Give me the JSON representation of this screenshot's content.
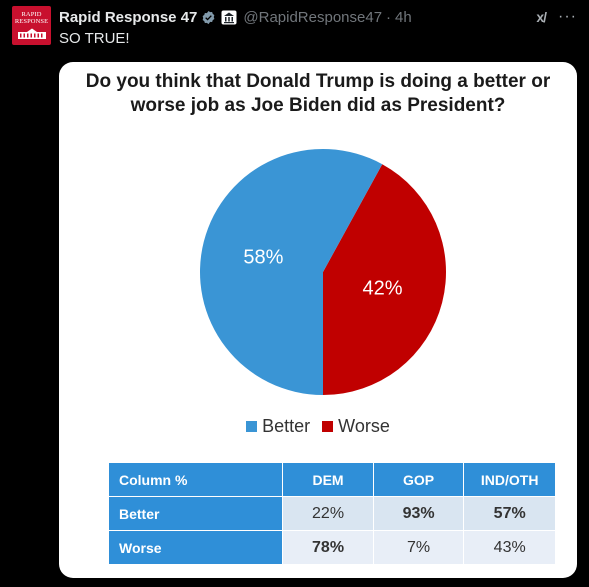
{
  "tweet": {
    "avatar": {
      "line1": "RAPID",
      "line2": "RESPONSE"
    },
    "author_name": "Rapid Response 47",
    "handle": "@RapidResponse47",
    "separator": "·",
    "time": "4h",
    "grok_label": "x/",
    "more_label": "···",
    "text": "SO TRUE!",
    "colors": {
      "background": "#000000",
      "text": "#e7e9ea",
      "muted": "#71767b",
      "verified": "#829aab"
    },
    "icons": [
      "verified-badge-icon",
      "government-building-icon",
      "grok-icon",
      "more-icon"
    ]
  },
  "poll": {
    "title": "Do you think that Donald Trump is doing a better or worse job as Joe Biden did as President?",
    "chart_data": {
      "type": "pie",
      "slices": [
        {
          "label": "Better",
          "value": 58,
          "display": "58%",
          "color": "#3a95d5"
        },
        {
          "label": "Worse",
          "value": 42,
          "display": "42%",
          "color": "#c00000"
        }
      ],
      "legend": [
        "Better",
        "Worse"
      ],
      "legend_position": "bottom"
    },
    "table": {
      "headers": [
        "Column %",
        "DEM",
        "GOP",
        "IND/OTH"
      ],
      "rows": [
        {
          "label": "Better",
          "values": [
            "22%",
            "93%",
            "57%"
          ],
          "bold": [
            false,
            true,
            true
          ]
        },
        {
          "label": "Worse",
          "values": [
            "78%",
            "7%",
            "43%"
          ],
          "bold": [
            true,
            false,
            false
          ]
        }
      ]
    }
  }
}
